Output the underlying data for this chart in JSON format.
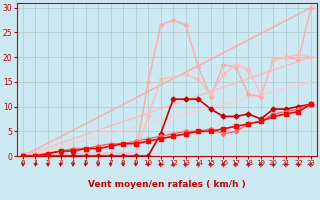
{
  "background_color": "#cce8f0",
  "grid_color": "#aacccc",
  "xlabel": "Vent moyen/en rafales ( km/h )",
  "ylabel_ticks": [
    0,
    5,
    10,
    15,
    20,
    25,
    30
  ],
  "xlim": [
    -0.5,
    23.5
  ],
  "ylim": [
    0,
    31
  ],
  "xticks": [
    0,
    1,
    2,
    3,
    4,
    5,
    6,
    7,
    8,
    9,
    10,
    11,
    12,
    13,
    14,
    15,
    16,
    17,
    18,
    19,
    20,
    21,
    22,
    23
  ],
  "diag_lines": [
    {
      "x": [
        0,
        23
      ],
      "y": [
        0,
        30
      ],
      "color": "#ffaaaa",
      "lw": 1.0
    },
    {
      "x": [
        0,
        23
      ],
      "y": [
        0,
        20
      ],
      "color": "#ffbbbb",
      "lw": 1.0
    },
    {
      "x": [
        0,
        23
      ],
      "y": [
        0,
        15
      ],
      "color": "#ffcccc",
      "lw": 1.0
    }
  ],
  "series": [
    {
      "x": [
        0,
        1,
        2,
        3,
        4,
        5,
        6,
        7,
        8,
        9,
        10,
        11,
        12,
        13,
        14,
        15,
        16,
        17,
        18,
        19,
        20,
        21,
        22,
        23
      ],
      "y": [
        0.5,
        0.5,
        0.5,
        0.5,
        0.5,
        0.5,
        0.5,
        0.5,
        0.5,
        0.5,
        15.0,
        26.5,
        27.5,
        26.5,
        18.0,
        12.0,
        18.5,
        18.0,
        12.5,
        12.0,
        19.5,
        20.0,
        19.5,
        30.0
      ],
      "color": "#ffaaaa",
      "lw": 1.0,
      "marker": "D",
      "ms": 2.0
    },
    {
      "x": [
        0,
        1,
        2,
        3,
        4,
        5,
        6,
        7,
        8,
        9,
        10,
        11,
        12,
        13,
        14,
        15,
        16,
        17,
        18,
        19,
        20,
        21,
        22,
        23
      ],
      "y": [
        0.5,
        0.5,
        0.5,
        0.5,
        0.5,
        0.5,
        0.5,
        0.5,
        0.5,
        0.5,
        8.0,
        15.5,
        16.0,
        16.5,
        15.5,
        12.5,
        16.5,
        18.5,
        17.5,
        12.5,
        19.5,
        20.0,
        20.5,
        20.0
      ],
      "color": "#ffbbbb",
      "lw": 1.0,
      "marker": "D",
      "ms": 2.0
    },
    {
      "x": [
        0,
        1,
        2,
        3,
        4,
        5,
        6,
        7,
        8,
        9,
        10,
        11,
        12,
        13,
        14,
        15,
        16,
        17,
        18,
        19,
        20,
        21,
        22,
        23
      ],
      "y": [
        0,
        0,
        0,
        0,
        0,
        0,
        0,
        0,
        0,
        0,
        0,
        4.5,
        11.5,
        11.5,
        11.5,
        9.5,
        8.0,
        8.0,
        8.5,
        7.5,
        9.5,
        9.5,
        10.0,
        10.5
      ],
      "color": "#cc0000",
      "lw": 1.2,
      "marker": "D",
      "ms": 2.5
    },
    {
      "x": [
        0,
        1,
        2,
        3,
        4,
        5,
        6,
        7,
        8,
        9,
        10,
        11,
        12,
        13,
        14,
        15,
        16,
        17,
        18,
        19,
        20,
        21,
        22,
        23
      ],
      "y": [
        0,
        0,
        0.5,
        1.0,
        1.5,
        1.5,
        2.0,
        2.5,
        2.5,
        3.0,
        3.5,
        4.0,
        4.5,
        5.0,
        5.0,
        5.5,
        4.5,
        5.0,
        6.5,
        7.0,
        8.5,
        9.0,
        9.5,
        10.5
      ],
      "color": "#ff6666",
      "lw": 1.0,
      "marker": "D",
      "ms": 2.0
    },
    {
      "x": [
        0,
        1,
        2,
        3,
        4,
        5,
        6,
        7,
        8,
        9,
        10,
        11,
        12,
        13,
        14,
        15,
        16,
        17,
        18,
        19,
        20,
        21,
        22,
        23
      ],
      "y": [
        0,
        0,
        0.5,
        1.0,
        1.0,
        1.5,
        1.5,
        2.0,
        2.5,
        2.5,
        3.0,
        3.5,
        4.0,
        4.5,
        5.0,
        5.0,
        5.5,
        6.0,
        6.5,
        7.0,
        8.0,
        8.5,
        9.0,
        10.5
      ],
      "color": "#ff0000",
      "lw": 1.2,
      "marker": "s",
      "ms": 2.5
    }
  ],
  "arrow_down_x": [
    0,
    1,
    2,
    3,
    4,
    5,
    6,
    7,
    8,
    9,
    10
  ],
  "arrow_up_x": [
    11,
    12,
    13,
    14,
    15,
    16,
    17,
    18,
    19,
    20,
    21,
    22,
    23
  ],
  "axis_color": "#cc0000",
  "tick_color": "#cc0000",
  "label_color": "#cc0000"
}
